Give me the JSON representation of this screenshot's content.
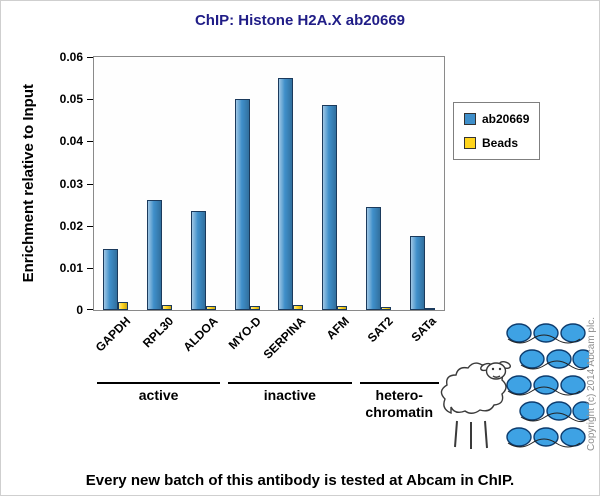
{
  "title": "ChIP: Histone H2A.X ab20669",
  "footer": "Every new batch of this antibody is tested at Abcam in ChIP.",
  "copyright": "Copyright (c) 2014 Abcam plc.",
  "chart_data": {
    "type": "bar",
    "title": "ChIP: Histone H2A.X ab20669",
    "categories": [
      "GAPDH",
      "RPL30",
      "ALDOA",
      "MYO-D",
      "SERPINA",
      "AFM",
      "SAT2",
      "SATa"
    ],
    "series": [
      {
        "name": "ab20669",
        "color": "#3f8fca",
        "values": [
          0.0145,
          0.026,
          0.0235,
          0.05,
          0.055,
          0.0485,
          0.0245,
          0.0175
        ]
      },
      {
        "name": "Beads",
        "color": "#ffd41c",
        "values": [
          0.002,
          0.0013,
          0.001,
          0.001,
          0.0012,
          0.001,
          0.0006,
          0.0005
        ]
      }
    ],
    "xlabel": "",
    "ylabel": "Enrichment relative to Input",
    "ylim": [
      0,
      0.06
    ],
    "ytick_step": 0.01,
    "grid": false,
    "legend_position": "right",
    "groups": [
      {
        "label": "active",
        "span": [
          0,
          2
        ]
      },
      {
        "label": "inactive",
        "span": [
          3,
          5
        ]
      },
      {
        "label": "hetero-\nchromatin",
        "span": [
          6,
          7
        ]
      }
    ]
  }
}
